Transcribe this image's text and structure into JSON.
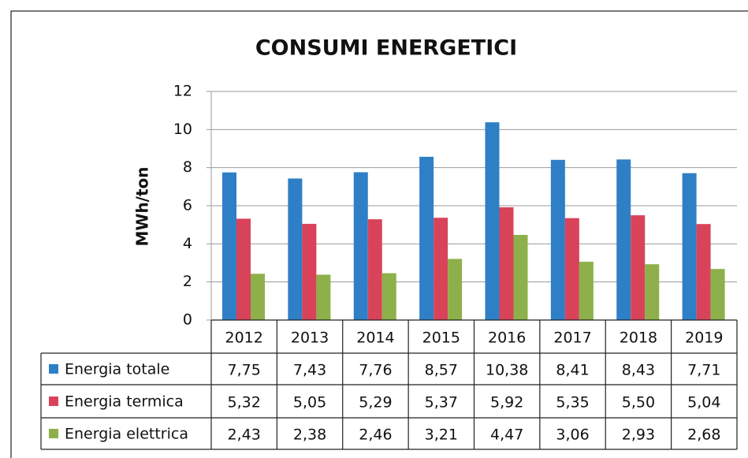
{
  "chart_data": {
    "type": "bar",
    "title": "CONSUMI ENERGETICI",
    "y_label": "MWh/ton",
    "categories": [
      "2012",
      "2013",
      "2014",
      "2015",
      "2016",
      "2017",
      "2018",
      "2019"
    ],
    "series": [
      {
        "name": "Energia totale",
        "color": "#2f7fc7",
        "values": [
          7.75,
          7.43,
          7.76,
          8.57,
          10.38,
          8.41,
          8.43,
          7.71
        ],
        "value_labels": [
          "7,75",
          "7,43",
          "7,76",
          "8,57",
          "10,38",
          "8,41",
          "8,43",
          "7,71"
        ]
      },
      {
        "name": "Energia termica",
        "color": "#d8435a",
        "values": [
          5.32,
          5.05,
          5.29,
          5.37,
          5.92,
          5.35,
          5.5,
          5.04
        ],
        "value_labels": [
          "5,32",
          "5,05",
          "5,29",
          "5,37",
          "5,92",
          "5,35",
          "5,50",
          "5,04"
        ]
      },
      {
        "name": "Energia elettrica",
        "color": "#8db04a",
        "values": [
          2.43,
          2.38,
          2.46,
          3.21,
          4.47,
          3.06,
          2.93,
          2.68
        ],
        "value_labels": [
          "2,43",
          "2,38",
          "2,46",
          "3,21",
          "4,47",
          "3,06",
          "2,93",
          "2,68"
        ]
      }
    ],
    "ylim": [
      0,
      12
    ],
    "yticks": [
      0,
      2,
      4,
      6,
      8,
      10,
      12
    ],
    "grid": true
  }
}
